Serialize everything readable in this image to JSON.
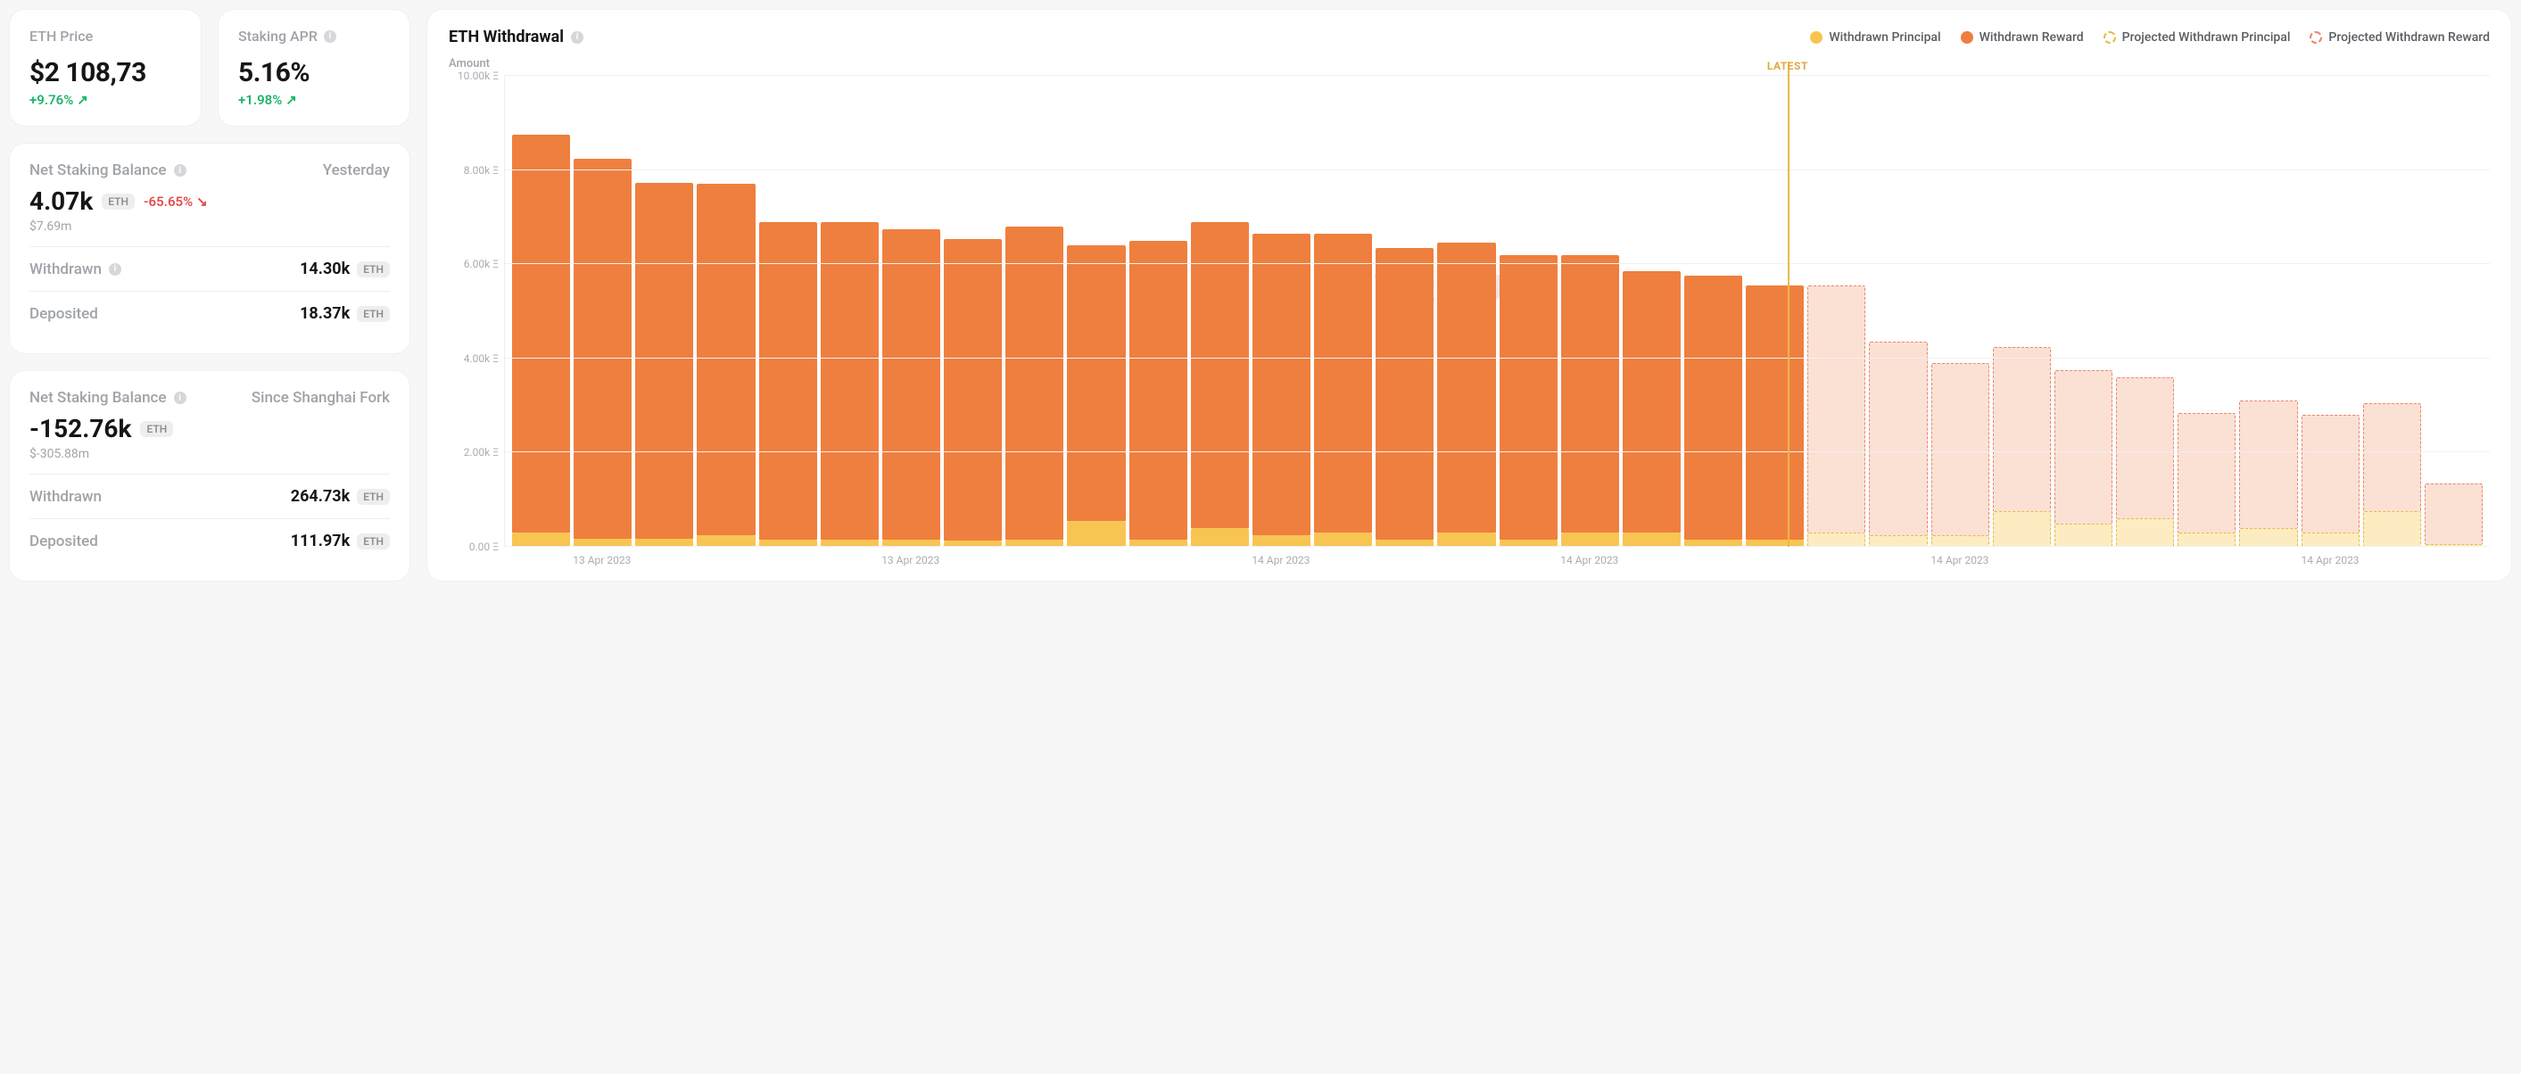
{
  "colors": {
    "principal": "#f8c553",
    "reward": "#ef7f3e",
    "proj_principal_fill": "#fdecc2",
    "proj_principal_border": "#e9b948",
    "proj_reward_fill": "#fbe0d4",
    "proj_reward_border": "#e9886b",
    "up": "#1fb36b",
    "down": "#e24b4b",
    "muted": "#9fa3a8"
  },
  "cards": {
    "eth_price": {
      "title": "ETH Price",
      "value": "$2 108,73",
      "delta": "+9.76%",
      "direction": "up"
    },
    "staking_apr": {
      "title": "Staking APR",
      "value": "5.16%",
      "delta": "+1.98%",
      "direction": "up"
    }
  },
  "net_yesterday": {
    "title": "Net Staking Balance",
    "period": "Yesterday",
    "value": "4.07k",
    "unit": "ETH",
    "delta": "-65.65%",
    "direction": "down",
    "sub": "$7.69m",
    "rows": [
      {
        "label": "Withdrawn",
        "value": "14.30k",
        "info": true
      },
      {
        "label": "Deposited",
        "value": "18.37k",
        "info": false
      }
    ]
  },
  "net_shanghai": {
    "title": "Net Staking Balance",
    "period": "Since Shanghai Fork",
    "value": "-152.76k",
    "unit": "ETH",
    "sub": "$-305.88m",
    "rows": [
      {
        "label": "Withdrawn",
        "value": "264.73k"
      },
      {
        "label": "Deposited",
        "value": "111.97k"
      }
    ]
  },
  "chart": {
    "title": "ETH Withdrawal",
    "y_label": "Amount",
    "legend": [
      {
        "label": "Withdrawn Principal",
        "color": "#f8c553",
        "hollow": false
      },
      {
        "label": "Withdrawn Reward",
        "color": "#ef7f3e",
        "hollow": false
      },
      {
        "label": "Projected Withdrawn Principal",
        "color": "#e9b948",
        "hollow": true
      },
      {
        "label": "Projected Withdrawn Reward",
        "color": "#e9886b",
        "hollow": true
      }
    ],
    "y_max": 10000,
    "y_ticks": [
      {
        "v": 10000,
        "label": "10.00k Ξ"
      },
      {
        "v": 8000,
        "label": "8.00k Ξ"
      },
      {
        "v": 6000,
        "label": "6.00k Ξ"
      },
      {
        "v": 4000,
        "label": "4.00k Ξ"
      },
      {
        "v": 2000,
        "label": "2.00k Ξ"
      },
      {
        "v": 0,
        "label": "0.00 Ξ"
      }
    ],
    "latest_label": "LATEST",
    "latest_index": 20,
    "bars": [
      {
        "principal": 300,
        "reward": 8450,
        "projected": false
      },
      {
        "principal": 180,
        "reward": 8050,
        "projected": false
      },
      {
        "principal": 180,
        "reward": 7550,
        "projected": false
      },
      {
        "principal": 250,
        "reward": 7450,
        "projected": false
      },
      {
        "principal": 150,
        "reward": 6750,
        "projected": false
      },
      {
        "principal": 150,
        "reward": 6750,
        "projected": false
      },
      {
        "principal": 150,
        "reward": 6600,
        "projected": false
      },
      {
        "principal": 130,
        "reward": 6400,
        "projected": false
      },
      {
        "principal": 150,
        "reward": 6650,
        "projected": false
      },
      {
        "principal": 550,
        "reward": 5850,
        "projected": false
      },
      {
        "principal": 150,
        "reward": 6350,
        "projected": false
      },
      {
        "principal": 400,
        "reward": 6500,
        "projected": false
      },
      {
        "principal": 250,
        "reward": 6400,
        "projected": false
      },
      {
        "principal": 300,
        "reward": 6350,
        "projected": false
      },
      {
        "principal": 150,
        "reward": 6200,
        "projected": false
      },
      {
        "principal": 300,
        "reward": 6150,
        "projected": false
      },
      {
        "principal": 150,
        "reward": 6050,
        "projected": false
      },
      {
        "principal": 300,
        "reward": 5900,
        "projected": false
      },
      {
        "principal": 300,
        "reward": 5550,
        "projected": false
      },
      {
        "principal": 150,
        "reward": 5600,
        "projected": false
      },
      {
        "principal": 150,
        "reward": 5400,
        "projected": false
      },
      {
        "principal": 300,
        "reward": 5250,
        "projected": true
      },
      {
        "principal": 250,
        "reward": 4100,
        "projected": true
      },
      {
        "principal": 250,
        "reward": 3650,
        "projected": true
      },
      {
        "principal": 750,
        "reward": 3500,
        "projected": true
      },
      {
        "principal": 500,
        "reward": 3250,
        "projected": true
      },
      {
        "principal": 600,
        "reward": 3000,
        "projected": true
      },
      {
        "principal": 300,
        "reward": 2550,
        "projected": true
      },
      {
        "principal": 400,
        "reward": 2700,
        "projected": true
      },
      {
        "principal": 300,
        "reward": 2500,
        "projected": true
      },
      {
        "principal": 750,
        "reward": 2300,
        "projected": true
      },
      {
        "principal": 50,
        "reward": 1300,
        "projected": true
      }
    ],
    "x_labels_sparse": [
      {
        "i": 1,
        "label": "13 Apr 2023"
      },
      {
        "i": 6,
        "label": "13 Apr 2023"
      },
      {
        "i": 12,
        "label": "14 Apr 2023"
      },
      {
        "i": 17,
        "label": "14 Apr 2023"
      },
      {
        "i": 23,
        "label": "14 Apr 2023"
      },
      {
        "i": 29,
        "label": "14 Apr 2023"
      }
    ]
  }
}
